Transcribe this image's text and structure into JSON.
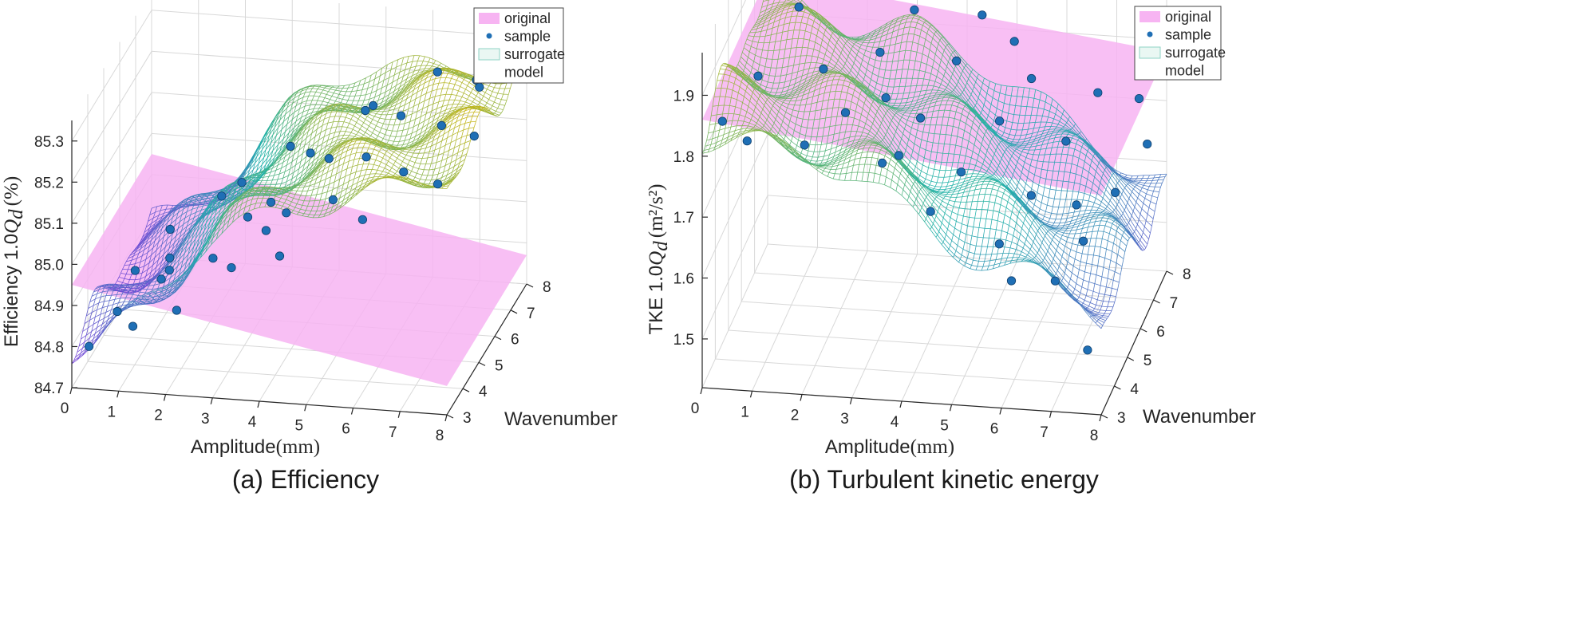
{
  "colors": {
    "original_plane": "#f7b4f2",
    "sample_dot": "#1f6fb5",
    "mesh_low": "#8a2be2",
    "mesh_mid": "#20b2aa",
    "mesh_high": "#e6b800"
  },
  "chart_data": [
    {
      "type": "surface3d",
      "caption": "(a) Efficiency",
      "xlabel": "Amplitude",
      "xlabel_unit": "(mm)",
      "ylabel": "Wavenumber",
      "zlabel_prefix": "Efficiency 1.0",
      "zlabel_var": "Q",
      "zlabel_sub": "d",
      "zlabel_unit": "(%)",
      "x_ticks": [
        "0",
        "1",
        "2",
        "3",
        "4",
        "5",
        "6",
        "7",
        "8"
      ],
      "y_ticks": [
        "3",
        "4",
        "5",
        "6",
        "7",
        "8"
      ],
      "z_ticks": [
        "84.7",
        "84.8",
        "84.9",
        "85.0",
        "85.1",
        "85.2",
        "85.3"
      ],
      "xlim": [
        0,
        8
      ],
      "ylim": [
        3,
        8
      ],
      "zlim": [
        84.7,
        85.35
      ],
      "original_plane": {
        "z_at_x0": 84.95,
        "z_at_x8": 84.77
      },
      "legend": [
        "original",
        "sample",
        "surrogate",
        "model"
      ],
      "surface_profile": {
        "x": [
          0,
          0.5,
          1,
          1.5,
          2,
          2.5,
          3,
          3.5,
          4,
          4.5,
          5,
          5.5,
          6,
          6.5,
          7,
          7.5,
          8
        ],
        "z": [
          84.8,
          84.82,
          84.86,
          84.9,
          84.95,
          85.02,
          85.08,
          85.12,
          85.15,
          85.18,
          85.2,
          85.21,
          85.22,
          85.23,
          85.24,
          85.25,
          85.26
        ]
      },
      "samples": [
        [
          0.3,
          3.2,
          84.79
        ],
        [
          0.8,
          3.5,
          84.86
        ],
        [
          1.2,
          3.3,
          84.84
        ],
        [
          1.5,
          4.2,
          84.9
        ],
        [
          0.5,
          5.5,
          84.83
        ],
        [
          1.0,
          6.2,
          84.82
        ],
        [
          2.1,
          3.4,
          84.88
        ],
        [
          2.5,
          4.5,
          84.94
        ],
        [
          2.8,
          5.8,
          84.96
        ],
        [
          1.8,
          7.1,
          84.92
        ],
        [
          3.2,
          3.6,
          84.98
        ],
        [
          3.5,
          5.2,
          85.04
        ],
        [
          3.9,
          6.5,
          85.08
        ],
        [
          3.1,
          7.6,
          85.02
        ],
        [
          4.2,
          4.1,
          85.09
        ],
        [
          4.6,
          5.6,
          85.13
        ],
        [
          4.9,
          7.0,
          85.16
        ],
        [
          5.3,
          3.8,
          85.15
        ],
        [
          5.6,
          5.0,
          85.18
        ],
        [
          5.9,
          6.3,
          85.2
        ],
        [
          6.2,
          7.7,
          85.22
        ],
        [
          6.6,
          4.4,
          85.19
        ],
        [
          6.9,
          5.9,
          85.21
        ],
        [
          7.2,
          7.2,
          85.24
        ],
        [
          7.5,
          3.9,
          85.2
        ],
        [
          7.8,
          5.3,
          85.23
        ],
        [
          7.4,
          6.8,
          85.25
        ],
        [
          2.3,
          6.9,
          84.97
        ],
        [
          4.4,
          3.1,
          85.05
        ],
        [
          6.1,
          3.3,
          85.14
        ],
        [
          5.1,
          6.9,
          85.18
        ],
        [
          3.7,
          4.3,
          85.03
        ],
        [
          1.4,
          5.0,
          84.87
        ],
        [
          0.6,
          7.4,
          84.81
        ],
        [
          7.9,
          7.9,
          85.27
        ]
      ]
    },
    {
      "type": "surface3d",
      "caption": "(b) Turbulent kinetic energy",
      "xlabel": "Amplitude",
      "xlabel_unit": "(mm)",
      "ylabel": "Wavenumber",
      "zlabel_prefix": "TKE 1.0",
      "zlabel_var": "Q",
      "zlabel_sub": "d",
      "zlabel_unit": "(m²/s²)",
      "x_ticks": [
        "0",
        "1",
        "2",
        "3",
        "4",
        "5",
        "6",
        "7",
        "8"
      ],
      "y_ticks": [
        "3",
        "4",
        "5",
        "6",
        "7",
        "8"
      ],
      "z_ticks": [
        "1.5",
        "1.6",
        "1.7",
        "1.8",
        "1.9"
      ],
      "xlim": [
        0,
        8
      ],
      "ylim": [
        3,
        8
      ],
      "zlim": [
        1.42,
        1.97
      ],
      "original_plane": {
        "z_at_x0": 1.86,
        "z_at_x8": 1.78
      },
      "legend": [
        "original",
        "sample",
        "surrogate",
        "model"
      ],
      "surface_profile": {
        "x": [
          0,
          0.5,
          1,
          1.5,
          2,
          2.5,
          3,
          3.5,
          4,
          4.5,
          5,
          5.5,
          6,
          6.5,
          7,
          7.5,
          8
        ],
        "z": [
          1.84,
          1.83,
          1.82,
          1.81,
          1.8,
          1.79,
          1.78,
          1.76,
          1.74,
          1.72,
          1.7,
          1.68,
          1.66,
          1.64,
          1.62,
          1.6,
          1.57
        ]
      },
      "samples": [
        [
          0.3,
          3.4,
          1.84
        ],
        [
          0.7,
          4.6,
          1.86
        ],
        [
          1.1,
          6.2,
          1.9
        ],
        [
          1.5,
          7.5,
          1.92
        ],
        [
          0.5,
          7.9,
          1.94
        ],
        [
          2.0,
          3.2,
          1.82
        ],
        [
          2.4,
          4.8,
          1.8
        ],
        [
          2.7,
          6.3,
          1.83
        ],
        [
          3.1,
          7.4,
          1.85
        ],
        [
          3.4,
          3.8,
          1.77
        ],
        [
          3.8,
          5.2,
          1.78
        ],
        [
          4.1,
          6.8,
          1.8
        ],
        [
          4.5,
          3.3,
          1.72
        ],
        [
          4.8,
          4.5,
          1.73
        ],
        [
          5.2,
          5.9,
          1.75
        ],
        [
          5.5,
          7.2,
          1.76
        ],
        [
          5.8,
          3.6,
          1.66
        ],
        [
          6.1,
          4.9,
          1.68
        ],
        [
          6.4,
          6.4,
          1.7
        ],
        [
          6.7,
          7.7,
          1.72
        ],
        [
          7.0,
          3.3,
          1.62
        ],
        [
          7.3,
          4.3,
          1.64
        ],
        [
          7.6,
          5.6,
          1.66
        ],
        [
          7.9,
          6.9,
          1.68
        ],
        [
          7.7,
          3.1,
          1.52
        ],
        [
          7.5,
          7.8,
          1.71
        ],
        [
          6.9,
          5.3,
          1.65
        ],
        [
          5.0,
          7.8,
          1.79
        ],
        [
          3.0,
          5.6,
          1.79
        ],
        [
          1.8,
          5.4,
          1.84
        ],
        [
          4.3,
          8.0,
          1.82
        ],
        [
          6.2,
          3.0,
          1.63
        ],
        [
          2.2,
          7.9,
          1.88
        ],
        [
          0.9,
          3.0,
          1.83
        ],
        [
          3.6,
          4.3,
          1.76
        ]
      ]
    }
  ]
}
